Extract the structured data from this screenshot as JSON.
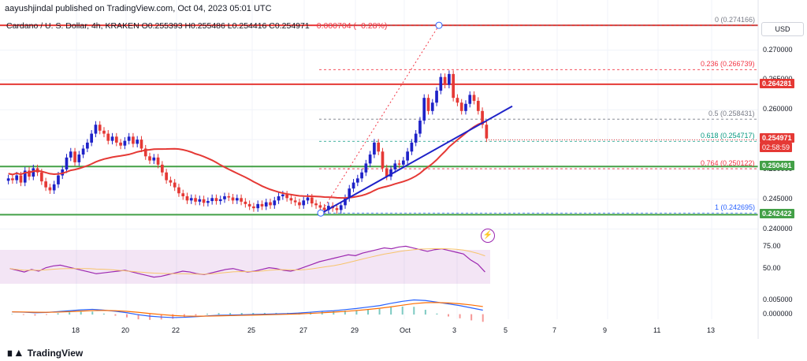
{
  "header": {
    "published": "aayushjindal published on TradingView.com, Oct 04, 2023 05:01 UTC",
    "symbol": "Cardano / U. S. Dollar, 4h, KRAKEN",
    "ohlc": "O0.255393 H0.255486 L0.254416 C0.254971",
    "change": "−0.000704 (−0.28%)",
    "currency": "USD"
  },
  "footer": {
    "brand": "TradingView"
  },
  "chart_data": {
    "type": "candlestick",
    "price_axis": {
      "range": [
        0.2385,
        0.2755
      ],
      "ticks": [
        "0.270000",
        "0.265000",
        "0.260000",
        "0.255000",
        "0.250000",
        "0.245000",
        "0.240000"
      ]
    },
    "x_ticks": [
      "18",
      "20",
      "22",
      "25",
      "27",
      "29",
      "Oct",
      "3",
      "5",
      "7",
      "9",
      "11",
      "13"
    ],
    "current_price": {
      "value": 0.254971,
      "label": "0.254971",
      "countdown": "02:58:59"
    },
    "horizontal_levels": [
      {
        "value": 0.264281,
        "label": "0.264281",
        "color": "#e53935"
      },
      {
        "value": 0.274166,
        "label": "",
        "color": "#e53935"
      },
      {
        "value": 0.250491,
        "label": "0.250491",
        "color": "#43a047"
      },
      {
        "value": 0.242422,
        "label": "0.242422",
        "color": "#43a047"
      }
    ],
    "fibonacci": [
      {
        "ratio": "0",
        "value": 0.274166,
        "label": "0 (0.274166)",
        "color": "#787b86"
      },
      {
        "ratio": "0.236",
        "value": 0.266739,
        "label": "0.236 (0.266739)",
        "color": "#f23645"
      },
      {
        "ratio": "0.5",
        "value": 0.258431,
        "label": "0.5 (0.258431)",
        "color": "#787b86"
      },
      {
        "ratio": "0.618",
        "value": 0.254717,
        "label": "0.618 (0.254717)",
        "color": "#089981"
      },
      {
        "ratio": "0.764",
        "value": 0.250122,
        "label": "0.764 (0.250122)",
        "color": "#f23645"
      },
      {
        "ratio": "1",
        "value": 0.242695,
        "label": "1 (0.242695)",
        "color": "#2962ff"
      }
    ],
    "trendline": {
      "from_price": 0.2426,
      "to_price": 0.2606,
      "color": "#1e22c8"
    },
    "sma_color": "#e53935",
    "candles_close": [
      0.2485,
      0.2482,
      0.249,
      0.2478,
      0.2498,
      0.2488,
      0.2502,
      0.2495,
      0.248,
      0.247,
      0.2465,
      0.2475,
      0.249,
      0.25,
      0.252,
      0.253,
      0.2512,
      0.2525,
      0.2535,
      0.2545,
      0.256,
      0.2575,
      0.2565,
      0.256,
      0.2548,
      0.2555,
      0.2545,
      0.254,
      0.2548,
      0.2555,
      0.2543,
      0.255,
      0.2535,
      0.2522,
      0.2515,
      0.252,
      0.2508,
      0.2495,
      0.2482,
      0.2478,
      0.247,
      0.246,
      0.2455,
      0.2448,
      0.2452,
      0.2446,
      0.245,
      0.2444,
      0.2447,
      0.2452,
      0.2447,
      0.245,
      0.2455,
      0.2453,
      0.2448,
      0.2452,
      0.2446,
      0.2442,
      0.2438,
      0.2435,
      0.2442,
      0.2438,
      0.2445,
      0.244,
      0.2448,
      0.2455,
      0.2458,
      0.2452,
      0.2448,
      0.2445,
      0.244,
      0.2448,
      0.2453,
      0.2443,
      0.244,
      0.2436,
      0.2432,
      0.2439,
      0.2435,
      0.2432,
      0.244,
      0.2452,
      0.2468,
      0.2478,
      0.2485,
      0.2495,
      0.251,
      0.2525,
      0.2545,
      0.253,
      0.2502,
      0.2488,
      0.25,
      0.251,
      0.2508,
      0.2515,
      0.253,
      0.2545,
      0.256,
      0.2582,
      0.262,
      0.2598,
      0.2612,
      0.2632,
      0.2655,
      0.2642,
      0.266,
      0.262,
      0.2612,
      0.2598,
      0.261,
      0.2625,
      0.2615,
      0.2598,
      0.2575,
      0.2552
    ],
    "rsi": {
      "range": [
        25,
        80
      ],
      "ticks": [
        "75.00",
        "50.00"
      ],
      "band": [
        30,
        70
      ],
      "values": [
        50,
        48,
        46,
        49,
        47,
        51,
        53,
        54,
        52,
        50,
        48,
        46,
        44,
        45,
        46,
        47,
        48,
        46,
        44,
        42,
        40,
        41,
        43,
        45,
        47,
        46,
        44,
        43,
        45,
        47,
        49,
        50,
        48,
        46,
        47,
        49,
        51,
        50,
        48,
        47,
        49,
        52,
        55,
        58,
        60,
        62,
        64,
        66,
        65,
        68,
        70,
        72,
        74,
        73,
        75,
        76,
        74,
        72,
        70,
        72,
        73,
        71,
        69,
        67,
        60,
        55,
        46
      ]
    },
    "macd": {
      "range": [
        -0.0015,
        0.0068
      ],
      "ticks": [
        "0.005000",
        "0.000000"
      ],
      "values": [
        0.0008,
        0.0007,
        0.0005,
        0.0006,
        0.0009,
        0.0012,
        0.0015,
        0.0017,
        0.0014,
        0.001,
        0.0005,
        -0.0002,
        -0.0007,
        -0.001,
        -0.0012,
        -0.0011,
        -0.0009,
        -0.0006,
        -0.0004,
        -0.0003,
        -0.0002,
        -0.0001,
        0.0,
        0.0001,
        0.0002,
        0.0004,
        0.0007,
        0.001,
        0.0012,
        0.0016,
        0.002,
        0.0025,
        0.003,
        0.0038,
        0.0045,
        0.005,
        0.0048,
        0.0042,
        0.0036,
        0.003,
        0.0022,
        0.0014
      ]
    }
  }
}
